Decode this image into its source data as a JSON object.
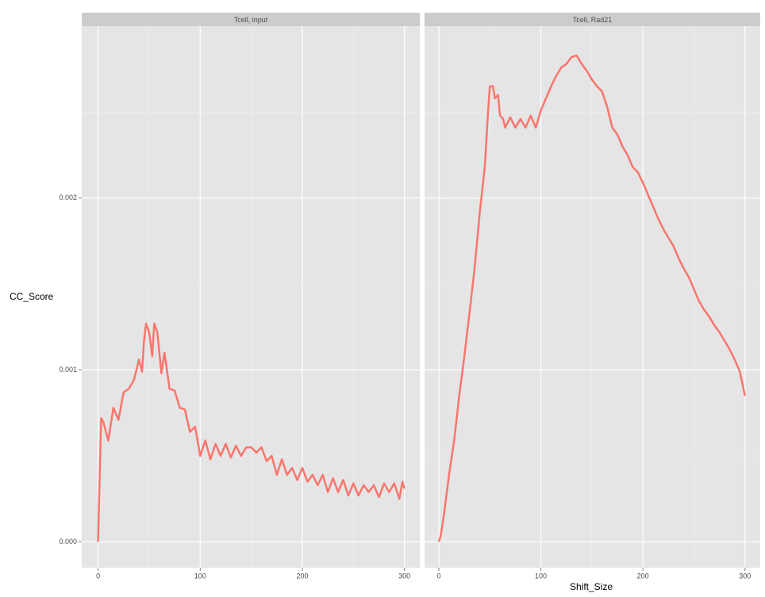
{
  "chart_data": [
    {
      "type": "line",
      "title": "Tcell, input",
      "ylabel": "CC_Score",
      "x": [
        0,
        3,
        5,
        10,
        15,
        20,
        25,
        30,
        35,
        40,
        43,
        45,
        47,
        50,
        53,
        55,
        58,
        62,
        65,
        70,
        75,
        80,
        85,
        90,
        95,
        100,
        105,
        110,
        115,
        120,
        125,
        130,
        135,
        140,
        145,
        150,
        155,
        160,
        165,
        170,
        175,
        180,
        185,
        190,
        195,
        200,
        205,
        210,
        215,
        220,
        225,
        230,
        235,
        240,
        245,
        250,
        255,
        260,
        265,
        270,
        275,
        280,
        285,
        290,
        295,
        298,
        300
      ],
      "series": [
        {
          "color": "#F8766D",
          "values": [
            0,
            0.00072,
            0.0007,
            0.00059,
            0.00078,
            0.00071,
            0.00087,
            0.00089,
            0.00094,
            0.00106,
            0.00099,
            0.00117,
            0.00127,
            0.00122,
            0.00108,
            0.00127,
            0.00122,
            0.00098,
            0.0011,
            0.00089,
            0.00088,
            0.00078,
            0.00077,
            0.00064,
            0.00067,
            0.0005,
            0.00059,
            0.00048,
            0.00057,
            0.0005,
            0.00057,
            0.00049,
            0.00056,
            0.0005,
            0.00055,
            0.00055,
            0.00052,
            0.00055,
            0.00047,
            0.0005,
            0.00039,
            0.00048,
            0.00039,
            0.00043,
            0.00036,
            0.00043,
            0.00035,
            0.00039,
            0.00033,
            0.00039,
            0.00029,
            0.00037,
            0.00029,
            0.00036,
            0.00027,
            0.00034,
            0.00027,
            0.00033,
            0.00029,
            0.00033,
            0.00026,
            0.00034,
            0.00029,
            0.00034,
            0.00025,
            0.00035,
            0.00031
          ]
        }
      ],
      "xlim": [
        -16,
        315
      ],
      "xticks": [
        0,
        100,
        200,
        300
      ],
      "ylim": [
        -0.00015,
        0.003
      ],
      "yticks": [
        {
          "value": 0,
          "label": "0.000"
        },
        {
          "value": 0.001,
          "label": "0.001"
        },
        {
          "value": 0.002,
          "label": "0.002"
        }
      ],
      "grid": true
    },
    {
      "type": "line",
      "title": "Tcell, Rad21",
      "xlabel": "Shift_Size",
      "x": [
        0,
        2,
        5,
        10,
        15,
        20,
        25,
        30,
        35,
        40,
        45,
        48,
        50,
        53,
        55,
        58,
        60,
        63,
        65,
        70,
        75,
        80,
        85,
        90,
        95,
        100,
        105,
        110,
        115,
        120,
        125,
        130,
        135,
        140,
        145,
        150,
        155,
        160,
        165,
        170,
        175,
        180,
        185,
        190,
        195,
        200,
        205,
        210,
        215,
        220,
        225,
        230,
        235,
        240,
        245,
        250,
        255,
        260,
        265,
        270,
        275,
        280,
        285,
        290,
        295,
        300
      ],
      "series": [
        {
          "color": "#F8766D",
          "values": [
            0,
            4e-05,
            0.00016,
            0.00039,
            0.00059,
            0.00085,
            0.00108,
            0.00133,
            0.00159,
            0.00191,
            0.00218,
            0.00248,
            0.00265,
            0.00265,
            0.00258,
            0.0026,
            0.00248,
            0.00246,
            0.00241,
            0.00247,
            0.00241,
            0.00246,
            0.00241,
            0.00248,
            0.00241,
            0.00251,
            0.00258,
            0.00265,
            0.00271,
            0.00276,
            0.00278,
            0.00282,
            0.00283,
            0.00278,
            0.00274,
            0.00269,
            0.00265,
            0.00262,
            0.00253,
            0.00241,
            0.00237,
            0.0023,
            0.00225,
            0.00218,
            0.00215,
            0.00209,
            0.00202,
            0.00195,
            0.00188,
            0.00182,
            0.00177,
            0.00172,
            0.00165,
            0.00159,
            0.00154,
            0.00147,
            0.0014,
            0.00135,
            0.00131,
            0.00126,
            0.00122,
            0.00117,
            0.00112,
            0.00106,
            0.00099,
            0.00085
          ]
        }
      ],
      "xlim": [
        -14,
        315
      ],
      "xticks": [
        0,
        100,
        200,
        300
      ],
      "ylim": [
        -0.00015,
        0.003
      ],
      "yticks": [
        {
          "value": 0,
          "label": "0.000"
        },
        {
          "value": 0.001,
          "label": "0.001"
        },
        {
          "value": 0.002,
          "label": "0.002"
        }
      ],
      "grid": true
    }
  ]
}
